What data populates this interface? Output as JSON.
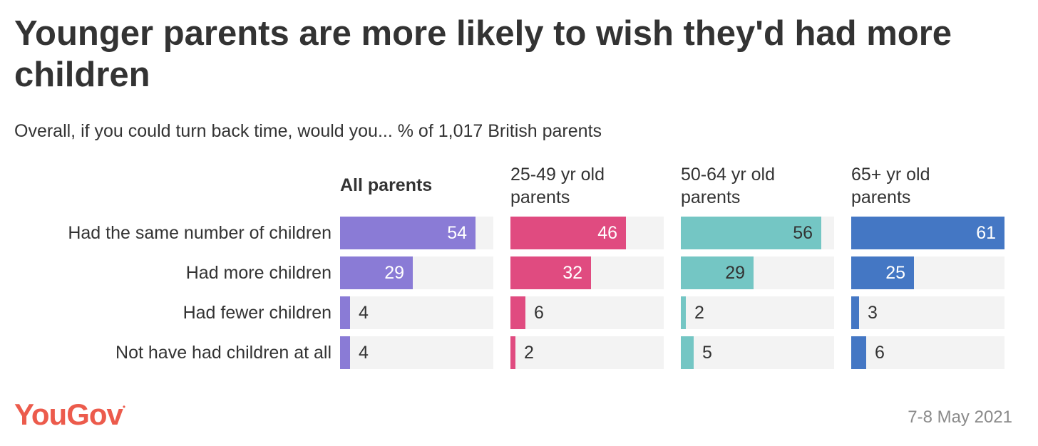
{
  "chart_data": {
    "type": "bar",
    "title": "Younger parents are more likely to wish they'd had more children",
    "subtitle": "Overall, if you could turn back time, would you... % of 1,017 British parents",
    "categories": [
      "Had the same number of children",
      "Had more children",
      "Had fewer children",
      "Not have had children at all"
    ],
    "xlim": [
      0,
      61
    ],
    "series": [
      {
        "name": "All parents",
        "color": "#8a7bd6",
        "value_text_color": "#ffffff",
        "values": [
          54,
          29,
          4,
          4
        ]
      },
      {
        "name": "25-49 yr old parents",
        "color": "#e04b80",
        "value_text_color": "#ffffff",
        "values": [
          46,
          32,
          6,
          2
        ]
      },
      {
        "name": "50-64 yr old parents",
        "color": "#74c6c4",
        "value_text_color": "#333333",
        "values": [
          56,
          29,
          2,
          5
        ]
      },
      {
        "name": "65+ yr old parents",
        "color": "#4477c4",
        "value_text_color": "#ffffff",
        "values": [
          61,
          25,
          3,
          6
        ]
      }
    ],
    "grid": false,
    "legend": "none"
  },
  "header_lines": [
    [
      "All parents"
    ],
    [
      "25-49 yr old",
      "parents"
    ],
    [
      "50-64 yr old",
      "parents"
    ],
    [
      "65+ yr old",
      "parents"
    ]
  ],
  "footer": {
    "logo_text": "YouGov",
    "date": "7-8 May 2021"
  }
}
